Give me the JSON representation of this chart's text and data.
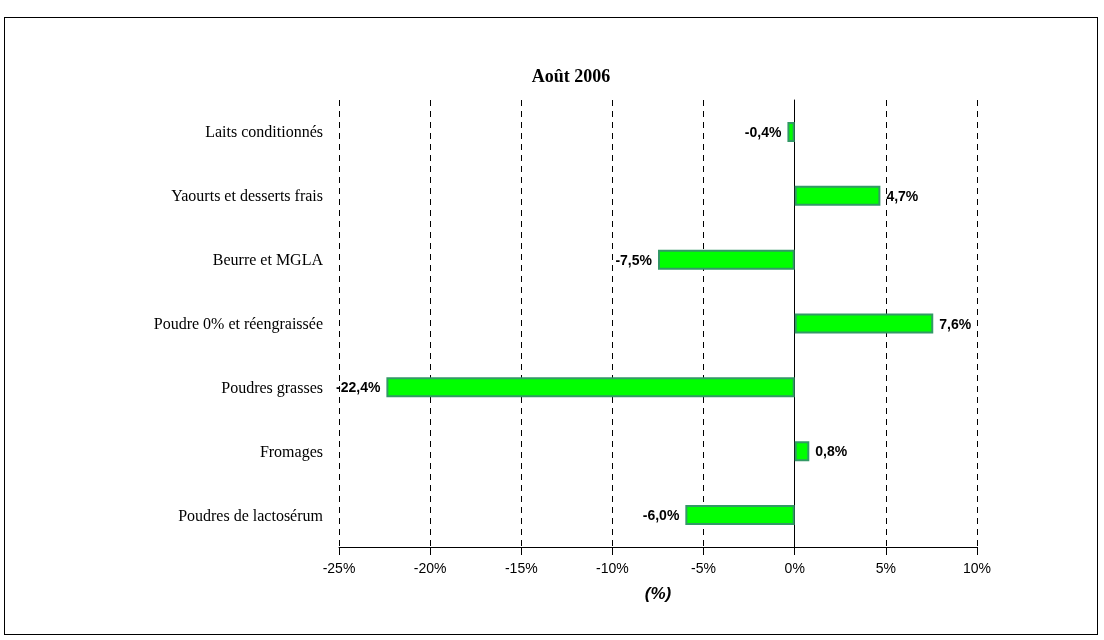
{
  "chart_data": {
    "type": "bar",
    "orientation": "horizontal",
    "title": "Août 2006",
    "xlabel": "(%)",
    "categories": [
      "Laits conditionnés",
      "Yaourts et desserts frais",
      "Beurre et MGLA",
      "Poudre 0% et réengraissée",
      "Poudres grasses",
      "Fromages",
      "Poudres de lactosérum"
    ],
    "series": [
      {
        "color": "#00ff00",
        "values": [
          -0.4,
          4.7,
          -7.5,
          7.6,
          -22.4,
          0.8,
          -6.0
        ],
        "value_labels": [
          "-0,4%",
          "4,7%",
          "-7,5%",
          "7,6%",
          "-22,4%",
          "0,8%",
          "-6,0%"
        ]
      }
    ],
    "xlim": [
      -25,
      10
    ],
    "xticks": [
      {
        "value": -25,
        "label": "-25%"
      },
      {
        "value": -20,
        "label": "-20%"
      },
      {
        "value": -15,
        "label": "-15%"
      },
      {
        "value": -10,
        "label": "-10%"
      },
      {
        "value": -5,
        "label": "-5%"
      },
      {
        "value": 0,
        "label": "0%"
      },
      {
        "value": 5,
        "label": "5%"
      },
      {
        "value": 10,
        "label": "10%"
      }
    ],
    "grid": "x"
  }
}
